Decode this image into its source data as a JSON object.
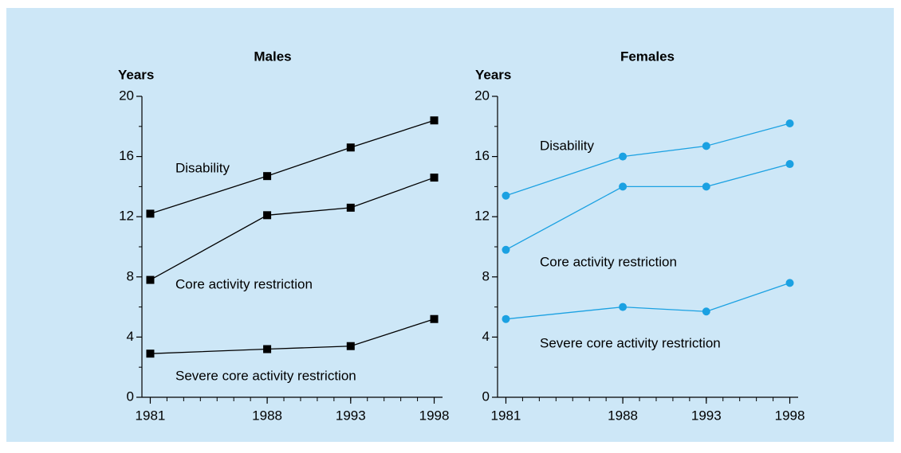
{
  "chart_data": [
    {
      "type": "line",
      "title": "Males",
      "ylabel": "Years",
      "x": [
        1981,
        1988,
        1993,
        1998
      ],
      "xlim": [
        1980.5,
        1998.5
      ],
      "xticks": [
        1981,
        1988,
        1993,
        1998
      ],
      "ylim": [
        0,
        20
      ],
      "yticks": [
        0,
        4,
        8,
        12,
        16,
        20
      ],
      "marker": "square",
      "series": [
        {
          "name": "Disability",
          "color": "#000000",
          "values": [
            12.2,
            14.7,
            16.6,
            18.4
          ]
        },
        {
          "name": "Core activity restriction",
          "color": "#000000",
          "values": [
            7.8,
            12.1,
            12.6,
            14.6
          ]
        },
        {
          "name": "Severe core activity restriction",
          "color": "#000000",
          "values": [
            2.9,
            3.2,
            3.4,
            5.2
          ]
        }
      ]
    },
    {
      "type": "line",
      "title": "Females",
      "ylabel": "Years",
      "x": [
        1981,
        1988,
        1993,
        1998
      ],
      "xlim": [
        1980.5,
        1998.5
      ],
      "xticks": [
        1981,
        1988,
        1993,
        1998
      ],
      "ylim": [
        0,
        20
      ],
      "yticks": [
        0,
        4,
        8,
        12,
        16,
        20
      ],
      "marker": "circle",
      "series": [
        {
          "name": "Disability",
          "color": "#1ba1e2",
          "values": [
            13.4,
            16.0,
            16.7,
            18.2
          ]
        },
        {
          "name": "Core activity restriction",
          "color": "#1ba1e2",
          "values": [
            9.8,
            14.0,
            14.0,
            15.5
          ]
        },
        {
          "name": "Severe core activity restriction",
          "color": "#1ba1e2",
          "values": [
            5.2,
            6.0,
            5.7,
            7.6
          ]
        }
      ]
    }
  ]
}
